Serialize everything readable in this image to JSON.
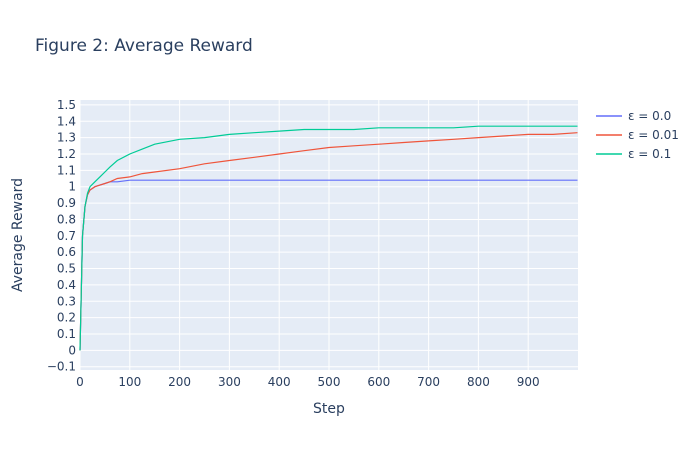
{
  "chart_data": {
    "type": "line",
    "title": "Figure 2: Average Reward",
    "xlabel": "Step",
    "ylabel": "Average Reward",
    "xlim": [
      0,
      1000
    ],
    "ylim": [
      -0.12,
      1.53
    ],
    "x_ticks": [
      0,
      100,
      200,
      300,
      400,
      500,
      600,
      700,
      800,
      900
    ],
    "y_ticks": [
      -0.1,
      0,
      0.1,
      0.2,
      0.3,
      0.4,
      0.5,
      0.6,
      0.7,
      0.8,
      0.9,
      1,
      1.1,
      1.2,
      1.3,
      1.4,
      1.5
    ],
    "grid": true,
    "legend_position": "top-right outside",
    "plot_background": "#e5ecf6",
    "series": [
      {
        "name": "ε = 0.0",
        "color": "#636efa",
        "x": [
          0,
          5,
          10,
          15,
          20,
          30,
          40,
          50,
          60,
          75,
          100,
          125,
          150,
          200,
          250,
          300,
          350,
          400,
          450,
          500,
          550,
          600,
          650,
          700,
          750,
          800,
          850,
          900,
          950,
          999
        ],
        "values": [
          0,
          0.7,
          0.88,
          0.95,
          0.98,
          1.0,
          1.01,
          1.02,
          1.03,
          1.03,
          1.04,
          1.04,
          1.04,
          1.04,
          1.04,
          1.04,
          1.04,
          1.04,
          1.04,
          1.04,
          1.04,
          1.04,
          1.04,
          1.04,
          1.04,
          1.04,
          1.04,
          1.04,
          1.04,
          1.04
        ]
      },
      {
        "name": "ε = 0.01",
        "color": "#ef553b",
        "x": [
          0,
          5,
          10,
          15,
          20,
          30,
          40,
          50,
          60,
          75,
          100,
          125,
          150,
          200,
          250,
          300,
          350,
          400,
          450,
          500,
          550,
          600,
          650,
          700,
          750,
          800,
          850,
          900,
          950,
          999
        ],
        "values": [
          0,
          0.7,
          0.88,
          0.95,
          0.98,
          1.0,
          1.01,
          1.02,
          1.03,
          1.05,
          1.06,
          1.08,
          1.09,
          1.11,
          1.14,
          1.16,
          1.18,
          1.2,
          1.22,
          1.24,
          1.25,
          1.26,
          1.27,
          1.28,
          1.29,
          1.3,
          1.31,
          1.32,
          1.32,
          1.33
        ]
      },
      {
        "name": "ε = 0.1",
        "color": "#00cc96",
        "x": [
          0,
          5,
          10,
          15,
          20,
          30,
          40,
          50,
          60,
          75,
          100,
          125,
          150,
          200,
          250,
          300,
          350,
          400,
          450,
          500,
          550,
          600,
          650,
          700,
          750,
          800,
          850,
          900,
          950,
          999
        ],
        "values": [
          0,
          0.7,
          0.88,
          0.96,
          1.0,
          1.03,
          1.06,
          1.09,
          1.12,
          1.16,
          1.2,
          1.23,
          1.26,
          1.29,
          1.3,
          1.32,
          1.33,
          1.34,
          1.35,
          1.35,
          1.35,
          1.36,
          1.36,
          1.36,
          1.36,
          1.37,
          1.37,
          1.37,
          1.37,
          1.37
        ]
      }
    ]
  }
}
